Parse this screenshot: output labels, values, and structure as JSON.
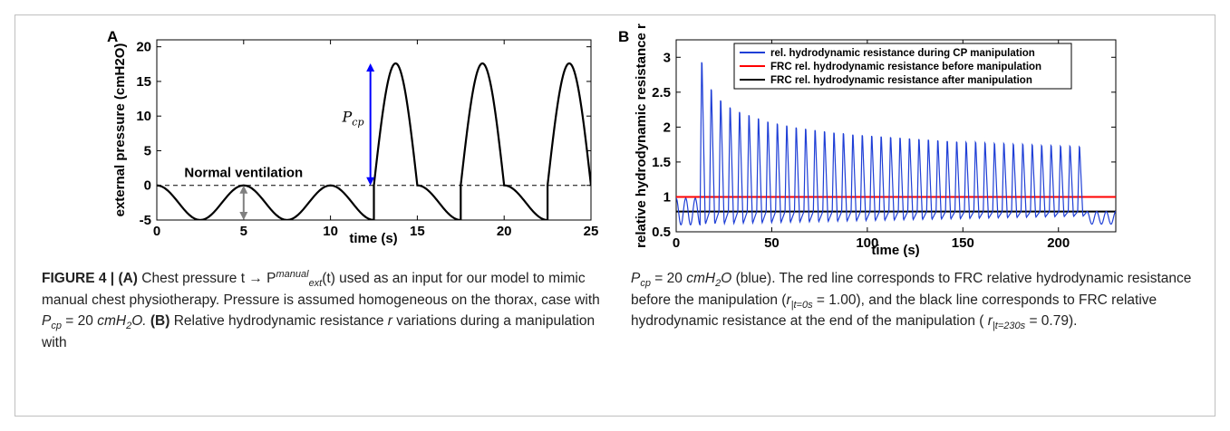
{
  "figure": {
    "number_label": "FIGURE 4 |",
    "caption_left": {
      "a_label": "(A)",
      "t1": "Chest pressure",
      "map": "t → P",
      "sup": "manual",
      "sub": "ext",
      "t2": "(t) used as an input for our model to mimic manual chest physiotherapy. Pressure is assumed homogeneous on the thorax, case with",
      "pcp": "P",
      "pcp_sub": "cp",
      "eq": "= 20",
      "unit": "cmH",
      "unit_sub": "2",
      "unit_end": "O.",
      "b_label": "(B)",
      "t3": "Relative hydrodynamic resistance",
      "r": "r",
      "t4": "variations during a manipulation with"
    },
    "caption_right": {
      "pcp": "P",
      "pcp_sub": "cp",
      "eq": "= 20",
      "unit": "cmH",
      "unit_sub": "2",
      "unit_end": "O",
      "t1": "(blue). The red line corresponds to FRC relative hydrodynamic resistance before the manipulation (",
      "r1": "r",
      "r1_sub": "|t=0s",
      "r1_val": "= 1.00), and the black line corresponds to FRC relative hydrodynamic resistance at the end of the manipulation (",
      "r2": "r",
      "r2_sub": "|t=230s",
      "r2_val": "= 0.79)."
    }
  },
  "chart_data": [
    {
      "panel_label": "A",
      "type": "line",
      "xlabel": "time (s)",
      "ylabel": "external pressure (cmH2O)",
      "xlim": [
        0,
        25
      ],
      "ylim": [
        -5,
        21
      ],
      "xticks": [
        0,
        5,
        10,
        15,
        20,
        25
      ],
      "yticks": [
        -5,
        0,
        5,
        10,
        15,
        20
      ],
      "series": [
        {
          "color": "#000000",
          "segments": [
            {
              "kind": "cosine",
              "t_start": 0,
              "t_end": 12.5,
              "amplitude": 2.5,
              "period": 5,
              "baseline": -2.5
            },
            {
              "kind": "half-sine",
              "t_start": 12.5,
              "t_end": 15,
              "peak": 17.6
            },
            {
              "kind": "cosine",
              "t_start": 15,
              "t_end": 17.5,
              "amplitude": 2.5,
              "period": 5,
              "baseline": -2.5
            },
            {
              "kind": "half-sine",
              "t_start": 17.5,
              "t_end": 20,
              "peak": 17.6
            },
            {
              "kind": "cosine",
              "t_start": 20,
              "t_end": 22.5,
              "amplitude": 2.5,
              "period": 5,
              "baseline": -2.5
            },
            {
              "kind": "half-sine",
              "t_start": 22.5,
              "t_end": 25,
              "peak": 17.6
            }
          ]
        }
      ],
      "reference_lines": [
        {
          "y": 0,
          "style": "dashed",
          "color": "#000000"
        }
      ],
      "annotations": [
        {
          "text": "Normal ventilation",
          "x": 5,
          "y": 1.1,
          "bold": true
        },
        {
          "text": "P",
          "sub": "cp",
          "x": 11.3,
          "y": 9.2,
          "italic": true
        },
        {
          "kind": "double-arrow",
          "color": "#0000ff",
          "x": 12.3,
          "y_from": 0,
          "y_to": 17.6
        },
        {
          "kind": "double-arrow",
          "color": "#808080",
          "x": 5,
          "y_from": -5,
          "y_to": 0
        }
      ]
    },
    {
      "panel_label": "B",
      "type": "line",
      "xlabel": "time (s)",
      "ylabel": "relative hydrodynamic resistance r",
      "xlim": [
        0,
        230
      ],
      "ylim": [
        0.5,
        3.25
      ],
      "xticks": [
        0,
        50,
        100,
        150,
        200
      ],
      "yticks": [
        0.5,
        1,
        1.5,
        2,
        2.5,
        3
      ],
      "legend_position": "top",
      "series": [
        {
          "name": "rel. hydrodynamic resistance during CP manipulation",
          "color": "#1f3fd6",
          "oscillation": {
            "period": 5,
            "trough_min": 0.6,
            "trough_max": 0.72,
            "cycle_start": 12.5,
            "cycle_end": 215
          },
          "peaks": [
            3.1,
            2.68,
            2.51,
            2.4,
            2.33,
            2.28,
            2.23,
            2.18,
            2.15,
            2.12,
            2.09,
            2.07,
            2.05,
            2.03,
            2.01,
            2.0,
            1.98,
            1.97,
            1.96,
            1.95,
            1.94,
            1.93,
            1.92,
            1.91,
            1.9,
            1.89,
            1.88,
            1.87,
            1.86,
            1.86,
            1.85,
            1.84,
            1.84,
            1.83,
            1.83,
            1.82,
            1.81,
            1.81,
            1.8,
            1.8,
            1.79
          ]
        },
        {
          "name": "FRC rel. hydrodynamic resistance before manipulation",
          "color": "#ff0000",
          "y": 1.0
        },
        {
          "name": "FRC rel. hydrodynamic resistance after manipulation",
          "color": "#000000",
          "y": 0.79
        }
      ]
    }
  ]
}
